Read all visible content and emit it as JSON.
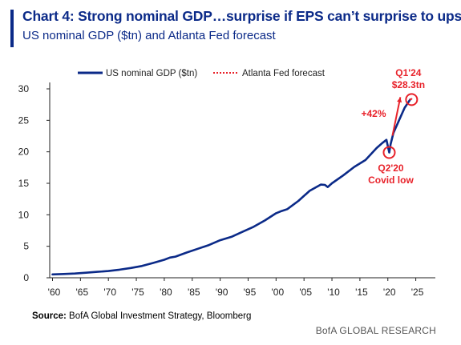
{
  "header": {
    "title": "Chart 4: Strong nominal GDP…surprise if EPS can’t surprise to upside",
    "subtitle": "US nominal GDP ($tn) and Atlanta Fed forecast"
  },
  "footer": {
    "source_label": "Source:",
    "source_text": "BofA Global Investment Strategy, Bloomberg",
    "brand": "BofA GLOBAL RESEARCH"
  },
  "colors": {
    "accent": "#0b2a88",
    "series": "#0b2a88",
    "annotation": "#e8222a"
  },
  "chart_data": {
    "type": "line",
    "title": "Chart 4: Strong nominal GDP…surprise if EPS can’t surprise to upside",
    "subtitle": "US nominal GDP ($tn) and Atlanta Fed forecast",
    "xlabel": "",
    "ylabel": "",
    "xlim": [
      1959.5,
      2028.5
    ],
    "ylim": [
      0,
      30
    ],
    "grid": false,
    "legend": "top-left",
    "x_ticks": [
      {
        "value": 1960,
        "label": "'60"
      },
      {
        "value": 1965,
        "label": "'65"
      },
      {
        "value": 1970,
        "label": "'70"
      },
      {
        "value": 1975,
        "label": "'75"
      },
      {
        "value": 1980,
        "label": "'80"
      },
      {
        "value": 1985,
        "label": "'85"
      },
      {
        "value": 1990,
        "label": "'90"
      },
      {
        "value": 1995,
        "label": "'95"
      },
      {
        "value": 2000,
        "label": "'00"
      },
      {
        "value": 2005,
        "label": "'05"
      },
      {
        "value": 2010,
        "label": "'10"
      },
      {
        "value": 2015,
        "label": "'15"
      },
      {
        "value": 2020,
        "label": "'20"
      },
      {
        "value": 2025,
        "label": "'25"
      }
    ],
    "y_ticks": [
      {
        "value": 0,
        "label": "0"
      },
      {
        "value": 5,
        "label": "5"
      },
      {
        "value": 10,
        "label": "10"
      },
      {
        "value": 15,
        "label": "15"
      },
      {
        "value": 20,
        "label": "20"
      },
      {
        "value": 25,
        "label": "25"
      },
      {
        "value": 30,
        "label": "30"
      }
    ],
    "series": [
      {
        "name": "US nominal GDP ($tn)",
        "style": "solid",
        "x": [
          1960,
          1962,
          1964,
          1966,
          1968,
          1970,
          1972,
          1974,
          1976,
          1978,
          1980,
          1981,
          1982,
          1984,
          1986,
          1988,
          1990,
          1992,
          1994,
          1996,
          1998,
          2000,
          2001,
          2002,
          2004,
          2006,
          2008,
          2008.75,
          2009.25,
          2010,
          2012,
          2014,
          2016,
          2018,
          2019,
          2019.75,
          2020.25,
          2020.5,
          2021,
          2022,
          2023,
          2024
        ],
        "y": [
          0.54,
          0.6,
          0.68,
          0.8,
          0.94,
          1.07,
          1.28,
          1.55,
          1.87,
          2.35,
          2.86,
          3.2,
          3.35,
          4.0,
          4.6,
          5.2,
          5.96,
          6.5,
          7.3,
          8.1,
          9.1,
          10.25,
          10.6,
          10.9,
          12.2,
          13.8,
          14.8,
          14.75,
          14.4,
          15.0,
          16.25,
          17.6,
          18.7,
          20.6,
          21.4,
          21.9,
          19.9,
          21.2,
          23.0,
          25.0,
          27.0,
          28.3
        ]
      },
      {
        "name": "Atlanta Fed forecast",
        "style": "dotted",
        "x": [
          2024,
          2024.25
        ],
        "y": [
          28.3,
          28.4
        ]
      }
    ],
    "annotations": [
      {
        "text": "Q1'24",
        "x": 2024.25,
        "y": 28.3
      },
      {
        "text": "$28.3tn",
        "x": 2024.25,
        "y": 28.3
      },
      {
        "text": "+42%",
        "x": 2022,
        "y": 25.5
      },
      {
        "text": "Q2'20",
        "x": 2020.25,
        "y": 19.9
      },
      {
        "text": "Covid low",
        "x": 2020.25,
        "y": 19.9
      }
    ]
  }
}
